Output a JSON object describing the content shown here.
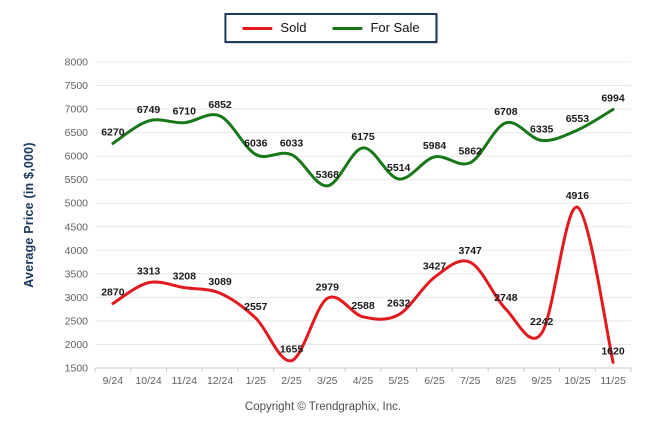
{
  "legend": {
    "items": [
      {
        "label": "Sold",
        "color": "#e2191d"
      },
      {
        "label": "For Sale",
        "color": "#187818"
      }
    ],
    "border_color": "#1f3a5f"
  },
  "footer": {
    "text": "Copyright © Trendgraphix, Inc."
  },
  "chart_data": {
    "type": "line",
    "title": "",
    "xlabel": "",
    "ylabel": "Average Price (in $,000)",
    "categories": [
      "9/24",
      "10/24",
      "11/24",
      "12/24",
      "1/25",
      "2/25",
      "3/25",
      "4/25",
      "5/25",
      "6/25",
      "7/25",
      "8/25",
      "9/25",
      "10/25",
      "11/25"
    ],
    "series": [
      {
        "name": "Sold",
        "color": "#e2191d",
        "values": [
          2870,
          3313,
          3208,
          3089,
          2557,
          1655,
          2979,
          2588,
          2632,
          3427,
          3747,
          2748,
          2242,
          4916,
          1620
        ]
      },
      {
        "name": "For Sale",
        "color": "#187818",
        "values": [
          6270,
          6749,
          6710,
          6852,
          6036,
          6033,
          5368,
          6175,
          5514,
          5984,
          5862,
          6708,
          6335,
          6553,
          6994
        ]
      }
    ],
    "ylim": [
      1500,
      8000
    ],
    "yticks": [
      1500,
      2000,
      2500,
      3000,
      3500,
      4000,
      4500,
      5000,
      5500,
      6000,
      6500,
      7000,
      7500,
      8000
    ],
    "grid": "horizontal",
    "legend_position": "top-center",
    "data_labels": true,
    "curve": "smooth"
  }
}
